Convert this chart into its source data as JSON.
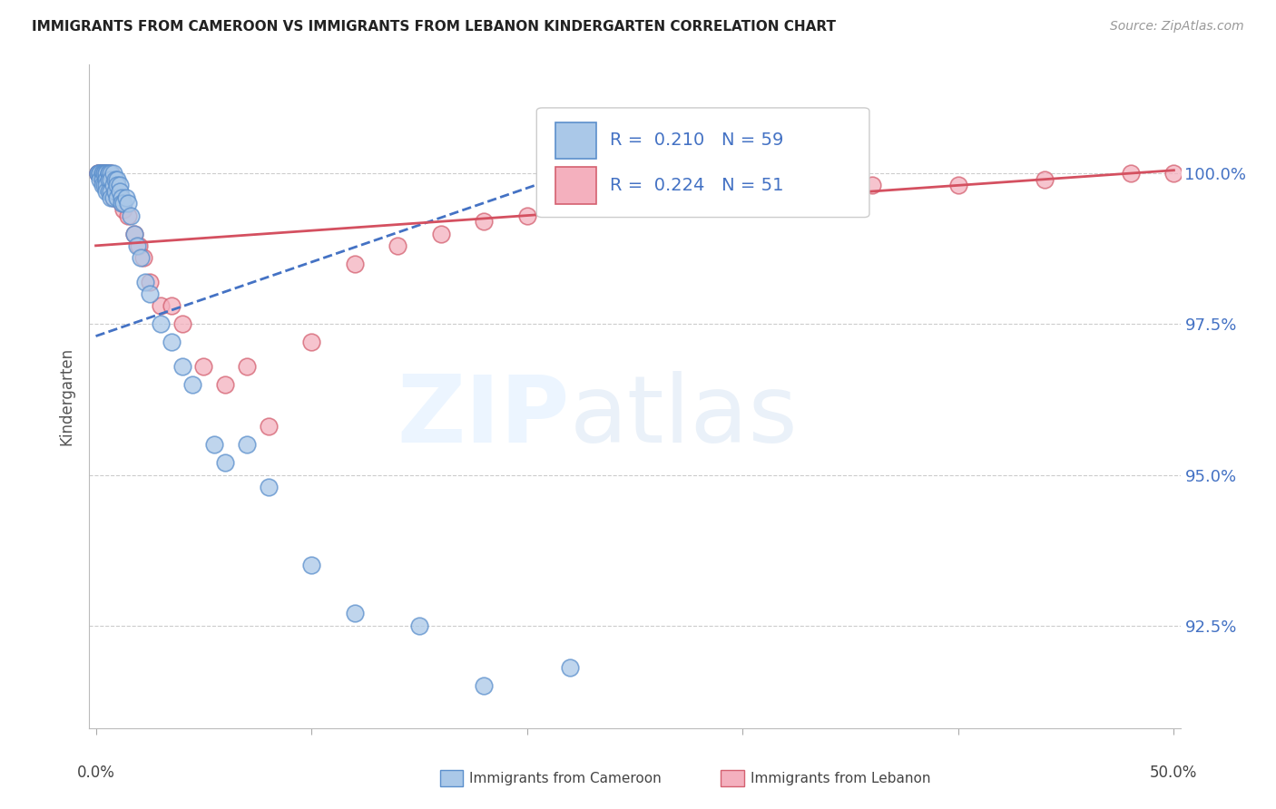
{
  "title": "IMMIGRANTS FROM CAMEROON VS IMMIGRANTS FROM LEBANON KINDERGARTEN CORRELATION CHART",
  "source": "Source: ZipAtlas.com",
  "ylabel": "Kindergarten",
  "yticks": [
    92.5,
    95.0,
    97.5,
    100.0
  ],
  "ytick_labels": [
    "92.5%",
    "95.0%",
    "97.5%",
    "100.0%"
  ],
  "xlim": [
    -0.003,
    0.503
  ],
  "ylim": [
    90.8,
    101.8
  ],
  "legend_r_cameroon": "0.210",
  "legend_n_cameroon": "59",
  "legend_r_lebanon": "0.224",
  "legend_n_lebanon": "51",
  "color_cameroon_fill": "#aac8e8",
  "color_cameroon_edge": "#5b8fcc",
  "color_lebanon_fill": "#f4b0be",
  "color_lebanon_edge": "#d46070",
  "color_cameroon_line": "#4472c4",
  "color_lebanon_line": "#d45060",
  "cameroon_x": [
    0.001,
    0.001,
    0.002,
    0.002,
    0.002,
    0.003,
    0.003,
    0.003,
    0.003,
    0.004,
    0.004,
    0.004,
    0.005,
    0.005,
    0.005,
    0.005,
    0.005,
    0.006,
    0.006,
    0.006,
    0.006,
    0.007,
    0.007,
    0.007,
    0.007,
    0.008,
    0.008,
    0.008,
    0.009,
    0.009,
    0.01,
    0.01,
    0.01,
    0.011,
    0.011,
    0.012,
    0.012,
    0.013,
    0.014,
    0.015,
    0.016,
    0.018,
    0.019,
    0.021,
    0.023,
    0.025,
    0.03,
    0.035,
    0.04,
    0.045,
    0.055,
    0.06,
    0.07,
    0.08,
    0.1,
    0.12,
    0.15,
    0.18,
    0.22
  ],
  "cameroon_y": [
    100.0,
    100.0,
    100.0,
    100.0,
    99.9,
    100.0,
    100.0,
    99.9,
    99.8,
    100.0,
    100.0,
    99.8,
    100.0,
    100.0,
    99.9,
    99.8,
    99.7,
    100.0,
    100.0,
    99.9,
    99.7,
    100.0,
    99.9,
    99.7,
    99.6,
    100.0,
    99.8,
    99.6,
    99.9,
    99.7,
    99.9,
    99.8,
    99.6,
    99.8,
    99.7,
    99.6,
    99.5,
    99.5,
    99.6,
    99.5,
    99.3,
    99.0,
    98.8,
    98.6,
    98.2,
    98.0,
    97.5,
    97.2,
    96.8,
    96.5,
    95.5,
    95.2,
    95.5,
    94.8,
    93.5,
    92.7,
    92.5,
    91.5,
    91.8
  ],
  "lebanon_x": [
    0.001,
    0.001,
    0.002,
    0.002,
    0.003,
    0.003,
    0.003,
    0.004,
    0.004,
    0.004,
    0.005,
    0.005,
    0.005,
    0.006,
    0.006,
    0.007,
    0.007,
    0.007,
    0.008,
    0.008,
    0.009,
    0.01,
    0.011,
    0.012,
    0.013,
    0.015,
    0.018,
    0.02,
    0.022,
    0.025,
    0.03,
    0.035,
    0.04,
    0.05,
    0.06,
    0.07,
    0.08,
    0.1,
    0.12,
    0.14,
    0.16,
    0.18,
    0.2,
    0.24,
    0.28,
    0.32,
    0.36,
    0.4,
    0.44,
    0.48,
    0.5
  ],
  "lebanon_y": [
    100.0,
    100.0,
    100.0,
    100.0,
    100.0,
    100.0,
    99.9,
    100.0,
    100.0,
    99.9,
    100.0,
    99.9,
    99.8,
    100.0,
    99.8,
    100.0,
    99.8,
    99.7,
    99.8,
    99.6,
    99.7,
    99.7,
    99.6,
    99.5,
    99.4,
    99.3,
    99.0,
    98.8,
    98.6,
    98.2,
    97.8,
    97.8,
    97.5,
    96.8,
    96.5,
    96.8,
    95.8,
    97.2,
    98.5,
    98.8,
    99.0,
    99.2,
    99.3,
    99.5,
    99.6,
    99.7,
    99.8,
    99.8,
    99.9,
    100.0,
    100.0
  ]
}
